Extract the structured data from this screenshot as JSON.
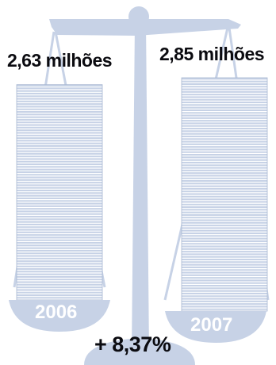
{
  "chart_data": {
    "type": "bar",
    "categories": [
      "2006",
      "2007"
    ],
    "values": [
      2.63,
      2.85
    ],
    "value_labels": [
      "2,63 milhões",
      "2,85 milhões"
    ],
    "annotation": "+ 8,37%",
    "colors": {
      "scale": "#c7d2e6",
      "stripe_line": "#a9b8d2",
      "text": "#0b0b10",
      "year_text": "#ffffff"
    }
  }
}
